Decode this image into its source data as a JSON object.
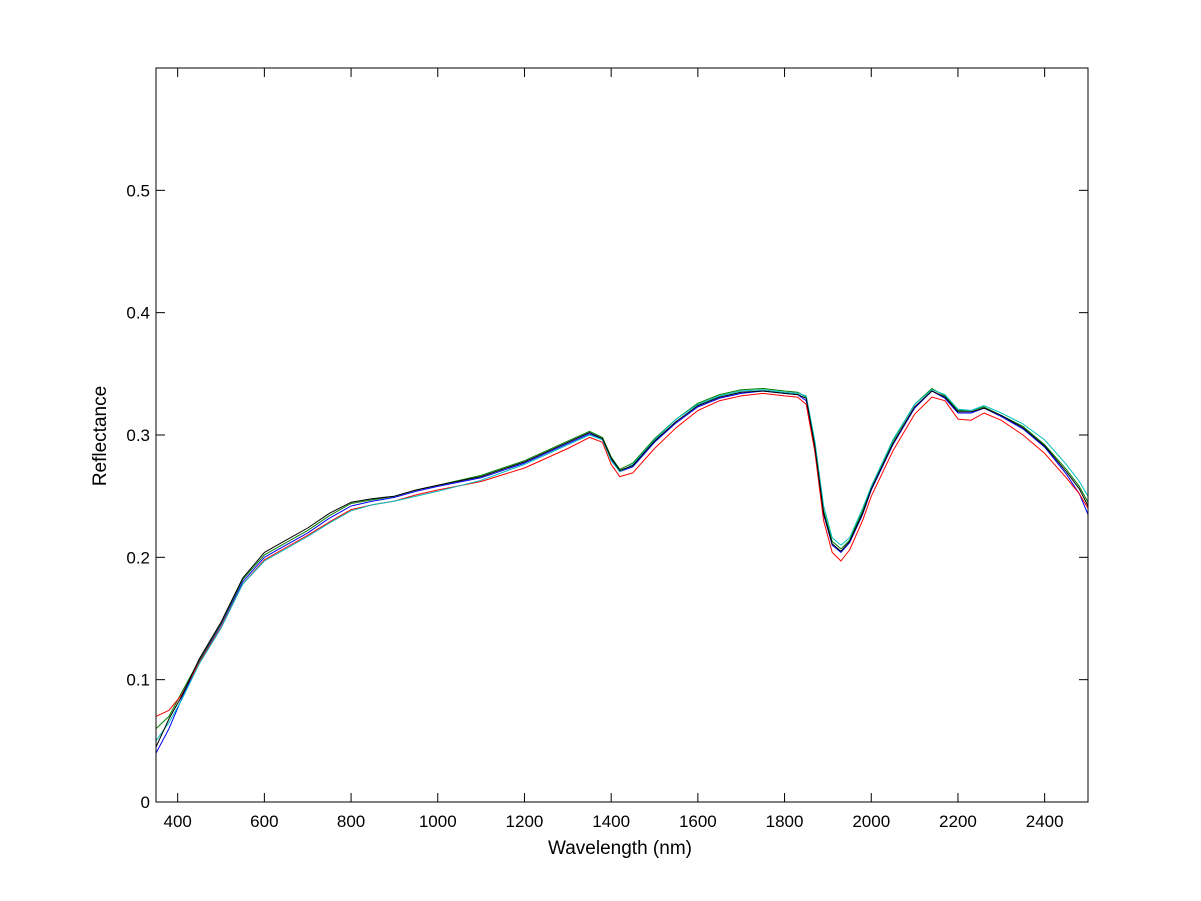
{
  "chart_data": {
    "type": "line",
    "xlabel": "Wavelength (nm)",
    "ylabel": "Reflectance",
    "xlim": [
      350,
      2500
    ],
    "ylim": [
      0,
      0.6
    ],
    "xticks": [
      400,
      600,
      800,
      1000,
      1200,
      1400,
      1600,
      1800,
      2000,
      2200,
      2400
    ],
    "yticks": [
      0,
      0.1,
      0.2,
      0.3,
      0.4,
      0.5
    ],
    "ytick_labels": [
      "0",
      "0.1",
      "0.2",
      "0.3",
      "0.4",
      "0.5"
    ],
    "grid": false,
    "legend": "none",
    "x": [
      350,
      380,
      410,
      450,
      500,
      550,
      600,
      650,
      700,
      750,
      800,
      850,
      900,
      950,
      1000,
      1100,
      1200,
      1300,
      1350,
      1380,
      1400,
      1420,
      1450,
      1500,
      1550,
      1600,
      1650,
      1700,
      1750,
      1800,
      1830,
      1850,
      1870,
      1890,
      1910,
      1930,
      1950,
      1980,
      2000,
      2050,
      2100,
      2140,
      2170,
      2200,
      2230,
      2260,
      2300,
      2350,
      2400,
      2450,
      2480,
      2500
    ],
    "series": [
      {
        "color": "#0000ff",
        "values": [
          0.04,
          0.06,
          0.085,
          0.115,
          0.145,
          0.18,
          0.2,
          0.21,
          0.22,
          0.232,
          0.242,
          0.246,
          0.249,
          0.254,
          0.258,
          0.265,
          0.277,
          0.293,
          0.301,
          0.297,
          0.28,
          0.27,
          0.274,
          0.294,
          0.31,
          0.323,
          0.33,
          0.334,
          0.336,
          0.334,
          0.333,
          0.328,
          0.29,
          0.235,
          0.21,
          0.204,
          0.212,
          0.235,
          0.255,
          0.292,
          0.322,
          0.336,
          0.33,
          0.318,
          0.318,
          0.322,
          0.315,
          0.305,
          0.29,
          0.268,
          0.252,
          0.235
        ]
      },
      {
        "color": "#008000",
        "values": [
          0.06,
          0.07,
          0.09,
          0.116,
          0.146,
          0.182,
          0.202,
          0.212,
          0.222,
          0.234,
          0.244,
          0.247,
          0.25,
          0.255,
          0.259,
          0.267,
          0.279,
          0.295,
          0.303,
          0.298,
          0.282,
          0.272,
          0.277,
          0.297,
          0.313,
          0.326,
          0.333,
          0.337,
          0.338,
          0.336,
          0.335,
          0.331,
          0.293,
          0.238,
          0.213,
          0.207,
          0.214,
          0.238,
          0.258,
          0.295,
          0.325,
          0.338,
          0.332,
          0.32,
          0.32,
          0.323,
          0.316,
          0.307,
          0.292,
          0.272,
          0.258,
          0.245
        ]
      },
      {
        "color": "#ff0000",
        "values": [
          0.07,
          0.075,
          0.088,
          0.114,
          0.143,
          0.178,
          0.198,
          0.208,
          0.218,
          0.229,
          0.239,
          0.243,
          0.246,
          0.251,
          0.255,
          0.262,
          0.273,
          0.289,
          0.298,
          0.294,
          0.276,
          0.266,
          0.269,
          0.289,
          0.306,
          0.32,
          0.328,
          0.332,
          0.334,
          0.332,
          0.331,
          0.325,
          0.286,
          0.23,
          0.204,
          0.197,
          0.206,
          0.23,
          0.25,
          0.287,
          0.317,
          0.331,
          0.328,
          0.313,
          0.312,
          0.318,
          0.312,
          0.3,
          0.285,
          0.265,
          0.252,
          0.24
        ]
      },
      {
        "color": "#00bfbf",
        "values": [
          0.05,
          0.065,
          0.084,
          0.113,
          0.142,
          0.178,
          0.197,
          0.207,
          0.217,
          0.228,
          0.238,
          0.243,
          0.246,
          0.25,
          0.254,
          0.263,
          0.276,
          0.292,
          0.3,
          0.296,
          0.279,
          0.27,
          0.276,
          0.296,
          0.313,
          0.325,
          0.332,
          0.336,
          0.337,
          0.335,
          0.334,
          0.332,
          0.295,
          0.242,
          0.216,
          0.21,
          0.216,
          0.24,
          0.258,
          0.296,
          0.325,
          0.337,
          0.333,
          0.321,
          0.32,
          0.324,
          0.318,
          0.309,
          0.296,
          0.276,
          0.262,
          0.25
        ]
      },
      {
        "color": "#000000",
        "values": [
          0.045,
          0.068,
          0.087,
          0.117,
          0.147,
          0.183,
          0.204,
          0.214,
          0.224,
          0.236,
          0.245,
          0.248,
          0.25,
          0.255,
          0.259,
          0.266,
          0.278,
          0.294,
          0.302,
          0.297,
          0.281,
          0.271,
          0.275,
          0.295,
          0.311,
          0.324,
          0.331,
          0.335,
          0.336,
          0.334,
          0.333,
          0.33,
          0.29,
          0.236,
          0.211,
          0.205,
          0.213,
          0.236,
          0.256,
          0.293,
          0.323,
          0.336,
          0.331,
          0.319,
          0.319,
          0.322,
          0.316,
          0.306,
          0.291,
          0.27,
          0.256,
          0.242
        ]
      }
    ]
  }
}
